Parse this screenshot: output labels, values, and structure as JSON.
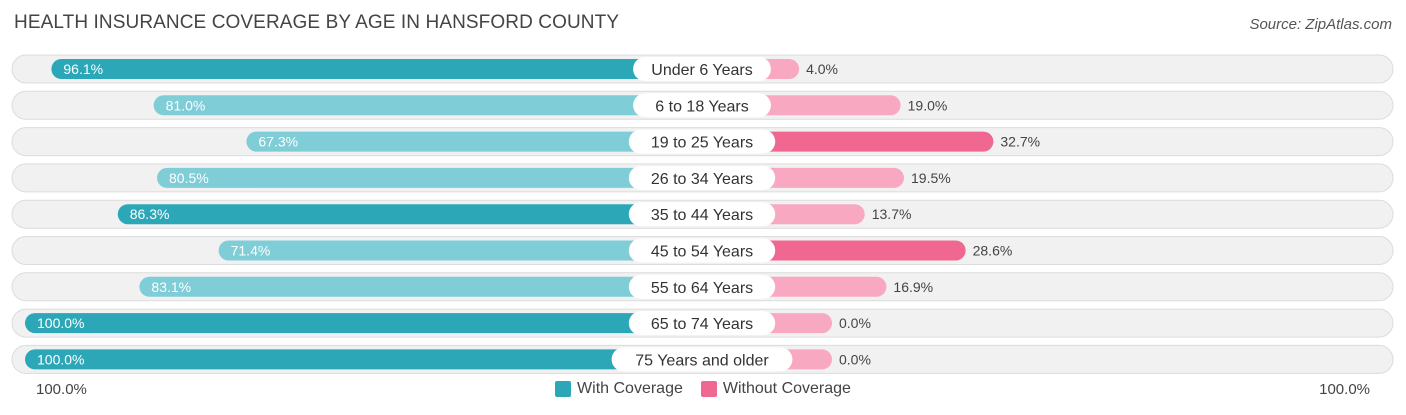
{
  "title": "HEALTH INSURANCE COVERAGE BY AGE IN HANSFORD COUNTY",
  "source": "Source: ZipAtlas.com",
  "colors": {
    "with_dark": "#2ba7b8",
    "with_light": "#7fcdd7",
    "without_dark": "#f06892",
    "without_light": "#f8a9c1",
    "row_bg": "#f1f1f1",
    "row_border": "#dcdcdc"
  },
  "legend": {
    "with_label": "With Coverage",
    "without_label": "Without Coverage"
  },
  "axis": {
    "left_label": "100.0%",
    "right_label": "100.0%"
  },
  "chart_data": {
    "type": "bar",
    "orientation": "horizontal-diverging",
    "title": "HEALTH INSURANCE COVERAGE BY AGE IN HANSFORD COUNTY",
    "categories": [
      "Under 6 Years",
      "6 to 18 Years",
      "19 to 25 Years",
      "26 to 34 Years",
      "35 to 44 Years",
      "45 to 54 Years",
      "55 to 64 Years",
      "65 to 74 Years",
      "75 Years and older"
    ],
    "series": [
      {
        "name": "With Coverage",
        "values": [
          96.1,
          81.0,
          67.3,
          80.5,
          86.3,
          71.4,
          83.1,
          100.0,
          100.0
        ],
        "labels": [
          "96.1%",
          "81.0%",
          "67.3%",
          "80.5%",
          "86.3%",
          "71.4%",
          "83.1%",
          "100.0%",
          "100.0%"
        ]
      },
      {
        "name": "Without Coverage",
        "values": [
          4.0,
          19.0,
          32.7,
          19.5,
          13.7,
          28.6,
          16.9,
          0.0,
          0.0
        ],
        "labels": [
          "4.0%",
          "19.0%",
          "32.7%",
          "19.5%",
          "13.7%",
          "28.6%",
          "16.9%",
          "0.0%",
          "0.0%"
        ]
      }
    ],
    "xlim": [
      0,
      100
    ]
  }
}
